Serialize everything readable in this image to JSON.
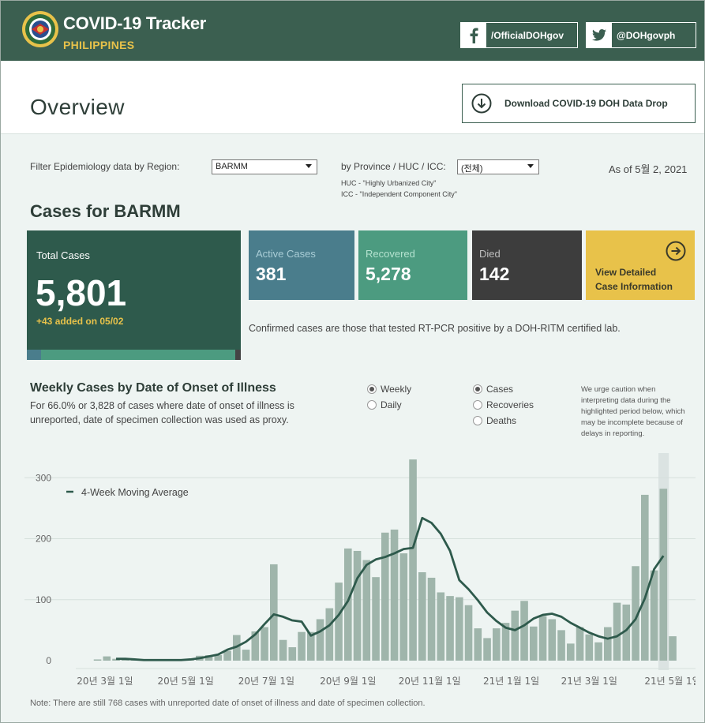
{
  "header": {
    "title": "COVID-19 Tracker",
    "subtitle": "PHILIPPINES",
    "facebook": "/OfficialDOHgov",
    "twitter": "@DOHgovph"
  },
  "overview": {
    "title": "Overview",
    "download_label": "Download COVID-19 DOH Data Drop"
  },
  "filters": {
    "region_label": "Filter Epidemiology data by Region:",
    "region_value": "BARMM",
    "province_label": "by Province / HUC / ICC:",
    "province_value": "(전체)",
    "huc_note": "HUC - \"Highly Urbanized City\"",
    "icc_note": "ICC - \"Independent Component City\"",
    "as_of": "As of 5월 2, 2021"
  },
  "cases": {
    "heading": "Cases for BARMM",
    "total_label": "Total Cases",
    "total_value": "5,801",
    "added": "+43 added on 05/02",
    "active_label": "Active Cases",
    "active_value": "381",
    "recovered_label": "Recovered",
    "recovered_value": "5,278",
    "died_label": "Died",
    "died_value": "142",
    "detail_line1": "View Detailed",
    "detail_line2": "Case Information",
    "confirmed_note": "Confirmed cases are those that tested RT-PCR positive by a DOH-RITM certified lab.",
    "breakdown": {
      "active": 381,
      "recovered": 5278,
      "died": 142,
      "total": 5801
    }
  },
  "chart_section": {
    "title": "Weekly Cases by Date of Onset of Illness",
    "description": "For 66.0% or 3,828 of cases where date of onset of illness is unreported, date of specimen collection was used as proxy.",
    "radio_weekly": "Weekly",
    "radio_daily": "Daily",
    "radio_cases": "Cases",
    "radio_recoveries": "Recoveries",
    "radio_deaths": "Deaths",
    "caution": "We urge caution when interpreting data during the highlighted period below, which may be incomplete because of delays in reporting.",
    "footnote": "Note: There are still 768 cases with unreported date of onset of illness and date of specimen collection."
  },
  "colors": {
    "header": "#3b5f50",
    "gold": "#e8c24a",
    "active": "#4a7d8c",
    "recovered": "#4c9b80",
    "died": "#3d3d3d",
    "bar": "#9fb5ab",
    "line": "#2e5a4c"
  },
  "chart_data": {
    "type": "bar",
    "title": "Weekly Cases by Date of Onset of Illness",
    "ylim": [
      0,
      340
    ],
    "yticks": [
      0,
      100,
      200,
      300
    ],
    "xtick_labels": [
      "20년 3월 1일",
      "20년 5월 1일",
      "20년 7월 1일",
      "20년 9월 1일",
      "20년 11월 1일",
      "21년 1월 1일",
      "21년 3월 1일",
      "21년 5월 1일"
    ],
    "xtick_index": [
      1.8,
      10.5,
      19.2,
      28.0,
      36.8,
      45.6,
      54.0,
      63.0
    ],
    "legend": "4-Week Moving Average",
    "highlight_from_index": 62,
    "series": [
      {
        "name": "Weekly Cases",
        "values": [
          0,
          2,
          7,
          3,
          2,
          1,
          1,
          1,
          1,
          1,
          2,
          3,
          8,
          9,
          9,
          16,
          42,
          18,
          48,
          55,
          158,
          34,
          22,
          47,
          47,
          68,
          86,
          128,
          184,
          180,
          165,
          137,
          210,
          215,
          176,
          330,
          145,
          136,
          112,
          106,
          104,
          91,
          53,
          37,
          53,
          62,
          82,
          98,
          56,
          73,
          68,
          50,
          28,
          55,
          43,
          30,
          55,
          95,
          92,
          155,
          272,
          148,
          282,
          40
        ]
      },
      {
        "name": "4-Week Moving Average",
        "start_index": 3,
        "values": [
          3,
          3,
          2,
          1,
          1,
          1,
          1,
          1,
          2,
          4,
          7,
          10,
          18,
          23,
          31,
          43,
          60,
          76,
          72,
          66,
          64,
          41,
          48,
          58,
          75,
          98,
          135,
          157,
          166,
          170,
          176,
          183,
          185,
          234,
          226,
          208,
          180,
          132,
          117,
          99,
          79,
          65,
          54,
          50,
          58,
          69,
          75,
          77,
          72,
          62,
          54,
          46,
          40,
          36,
          40,
          50,
          68,
          102,
          150,
          172
        ]
      }
    ]
  }
}
